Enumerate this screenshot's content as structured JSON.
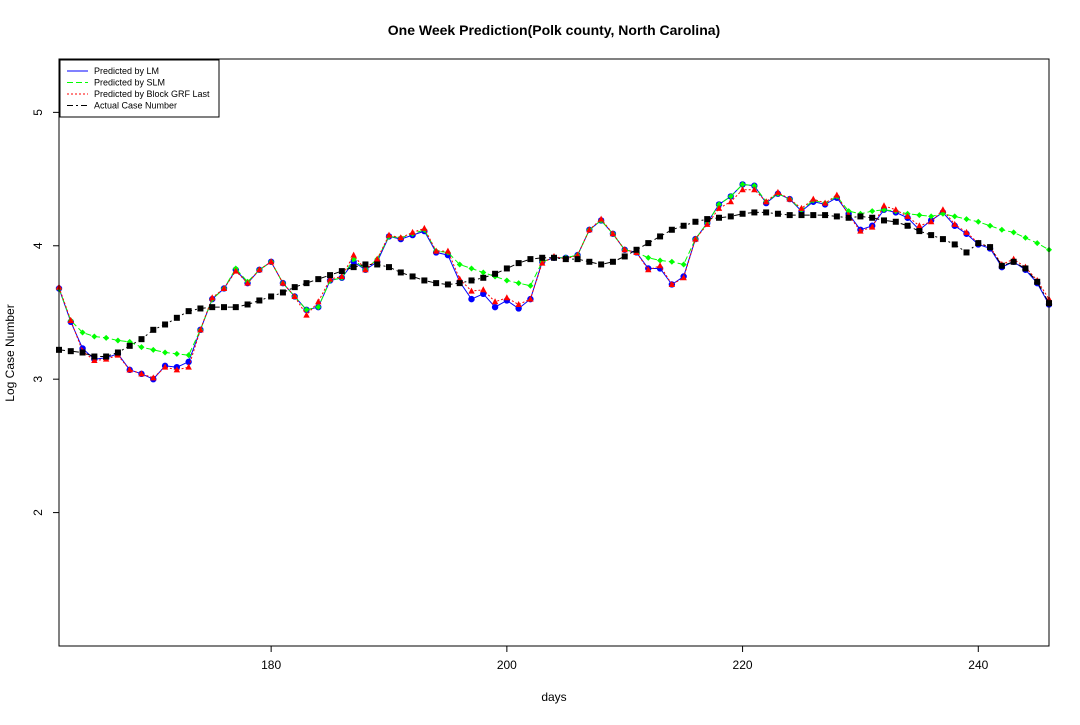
{
  "chart_data": {
    "type": "line",
    "title": "One Week Prediction(Polk county, North Carolina)",
    "xlabel": "days",
    "ylabel": "Log Case Number",
    "xlim": [
      162,
      246
    ],
    "ylim": [
      1,
      5.4
    ],
    "x_ticks": [
      180,
      200,
      220,
      240
    ],
    "y_ticks": [
      2,
      3,
      4,
      5
    ],
    "grid": false,
    "legend_position": "top-left",
    "x": [
      162,
      163,
      164,
      165,
      166,
      167,
      168,
      169,
      170,
      171,
      172,
      173,
      174,
      175,
      176,
      177,
      178,
      179,
      180,
      181,
      182,
      183,
      184,
      185,
      186,
      187,
      188,
      189,
      190,
      191,
      192,
      193,
      194,
      195,
      196,
      197,
      198,
      199,
      200,
      201,
      202,
      203,
      204,
      205,
      206,
      207,
      208,
      209,
      210,
      211,
      212,
      213,
      214,
      215,
      216,
      217,
      218,
      219,
      220,
      221,
      222,
      223,
      224,
      225,
      226,
      227,
      228,
      229,
      230,
      231,
      232,
      233,
      234,
      235,
      236,
      237,
      238,
      239,
      240,
      241,
      242,
      243,
      244,
      245,
      246
    ],
    "series": [
      {
        "name": "Predicted by LM",
        "color": "#0000ff",
        "line_style": "solid",
        "marker": "circle",
        "values": [
          3.68,
          3.43,
          3.23,
          3.15,
          3.16,
          3.19,
          3.07,
          3.04,
          3.0,
          3.1,
          3.09,
          3.13,
          3.37,
          3.6,
          3.68,
          3.82,
          3.72,
          3.82,
          3.88,
          3.72,
          3.62,
          3.52,
          3.54,
          3.74,
          3.76,
          3.88,
          3.82,
          3.88,
          4.07,
          4.05,
          4.08,
          4.11,
          3.95,
          3.93,
          3.73,
          3.6,
          3.64,
          3.54,
          3.59,
          3.53,
          3.6,
          3.88,
          3.91,
          3.91,
          3.93,
          4.12,
          4.19,
          4.09,
          3.97,
          3.95,
          3.83,
          3.83,
          3.71,
          3.77,
          4.05,
          4.17,
          4.31,
          4.37,
          4.46,
          4.45,
          4.32,
          4.39,
          4.35,
          4.26,
          4.33,
          4.31,
          4.36,
          4.24,
          4.12,
          4.15,
          4.27,
          4.25,
          4.21,
          4.12,
          4.19,
          4.25,
          4.15,
          4.09,
          4.01,
          3.98,
          3.84,
          3.88,
          3.82,
          3.72,
          3.56
        ]
      },
      {
        "name": "Predicted by SLM",
        "color": "#00ff00",
        "line_style": "dashed",
        "marker": "diamond",
        "values": [
          3.68,
          3.44,
          3.35,
          3.32,
          3.31,
          3.29,
          3.28,
          3.24,
          3.22,
          3.2,
          3.19,
          3.18,
          3.37,
          3.6,
          3.68,
          3.83,
          3.73,
          3.82,
          3.88,
          3.72,
          3.62,
          3.52,
          3.54,
          3.74,
          3.76,
          3.9,
          3.82,
          3.9,
          4.07,
          4.06,
          4.09,
          4.12,
          3.96,
          3.95,
          3.86,
          3.83,
          3.8,
          3.77,
          3.74,
          3.72,
          3.7,
          3.88,
          3.91,
          3.91,
          3.93,
          4.12,
          4.19,
          4.09,
          3.97,
          3.95,
          3.91,
          3.89,
          3.88,
          3.86,
          4.05,
          4.17,
          4.31,
          4.37,
          4.46,
          4.45,
          4.33,
          4.39,
          4.35,
          4.27,
          4.34,
          4.32,
          4.37,
          4.26,
          4.24,
          4.26,
          4.27,
          4.26,
          4.24,
          4.23,
          4.22,
          4.24,
          4.22,
          4.2,
          4.18,
          4.15,
          4.12,
          4.1,
          4.06,
          4.02,
          3.97
        ]
      },
      {
        "name": "Predicted by Block GRF Last",
        "color": "#ff0000",
        "line_style": "dotted",
        "marker": "triangle",
        "values": [
          3.69,
          3.44,
          3.21,
          3.14,
          3.15,
          3.18,
          3.07,
          3.04,
          3.01,
          3.09,
          3.07,
          3.09,
          3.37,
          3.61,
          3.68,
          3.81,
          3.72,
          3.82,
          3.88,
          3.72,
          3.62,
          3.48,
          3.58,
          3.75,
          3.77,
          3.93,
          3.82,
          3.9,
          4.08,
          4.06,
          4.1,
          4.13,
          3.96,
          3.96,
          3.75,
          3.66,
          3.67,
          3.58,
          3.61,
          3.56,
          3.6,
          3.87,
          3.92,
          3.9,
          3.93,
          4.12,
          4.2,
          4.09,
          3.97,
          3.95,
          3.82,
          3.85,
          3.71,
          3.76,
          4.05,
          4.16,
          4.28,
          4.33,
          4.42,
          4.42,
          4.33,
          4.4,
          4.35,
          4.28,
          4.35,
          4.32,
          4.38,
          4.23,
          4.11,
          4.14,
          4.3,
          4.27,
          4.22,
          4.15,
          4.18,
          4.27,
          4.16,
          4.1,
          4.02,
          3.99,
          3.86,
          3.9,
          3.84,
          3.74,
          3.6
        ]
      },
      {
        "name": "Actual Case Number",
        "color": "#000000",
        "line_style": "dashdot",
        "marker": "square",
        "values": [
          3.22,
          3.21,
          3.2,
          3.17,
          3.17,
          3.2,
          3.25,
          3.3,
          3.37,
          3.41,
          3.46,
          3.51,
          3.53,
          3.54,
          3.54,
          3.54,
          3.56,
          3.59,
          3.62,
          3.65,
          3.69,
          3.72,
          3.75,
          3.78,
          3.81,
          3.84,
          3.86,
          3.86,
          3.84,
          3.8,
          3.77,
          3.74,
          3.72,
          3.71,
          3.72,
          3.74,
          3.76,
          3.79,
          3.83,
          3.87,
          3.9,
          3.91,
          3.91,
          3.9,
          3.9,
          3.88,
          3.86,
          3.88,
          3.92,
          3.97,
          4.02,
          4.07,
          4.12,
          4.15,
          4.18,
          4.2,
          4.21,
          4.22,
          4.24,
          4.25,
          4.25,
          4.24,
          4.23,
          4.23,
          4.23,
          4.23,
          4.22,
          4.21,
          4.22,
          4.21,
          4.19,
          4.18,
          4.15,
          4.11,
          4.08,
          4.05,
          4.01,
          3.95,
          4.02,
          3.99,
          3.85,
          3.88,
          3.83,
          3.73,
          3.57
        ]
      }
    ]
  }
}
